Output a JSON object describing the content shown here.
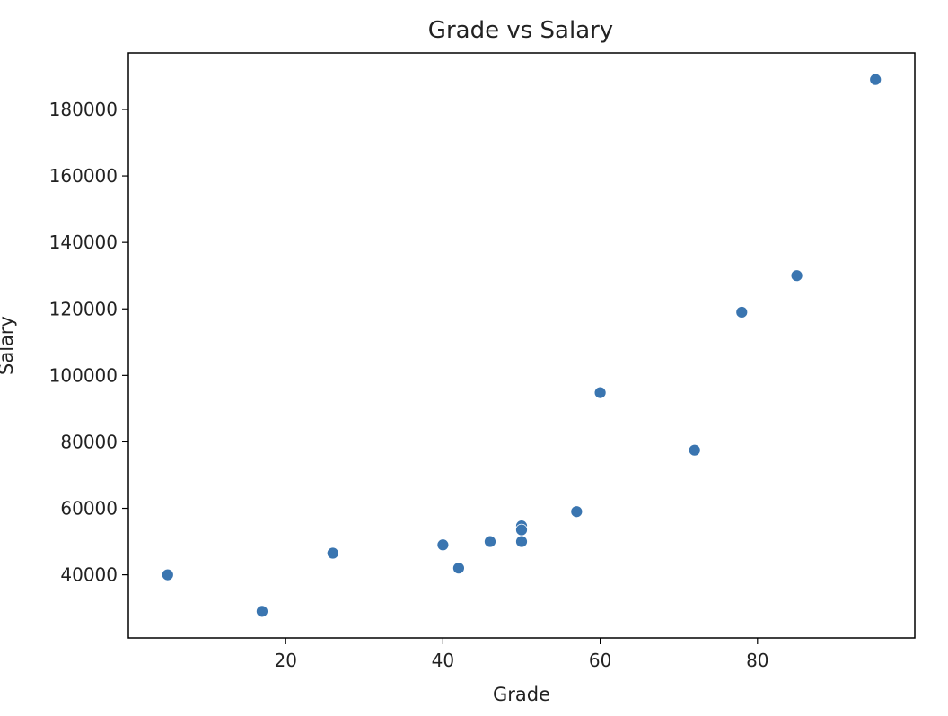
{
  "chart_data": {
    "type": "scatter",
    "title": "Grade vs Salary",
    "xlabel": "Grade",
    "ylabel": "Salary",
    "xlim": [
      0,
      100
    ],
    "ylim": [
      21000,
      197000
    ],
    "x_ticks": [
      20,
      40,
      60,
      80
    ],
    "y_ticks": [
      40000,
      60000,
      80000,
      100000,
      120000,
      140000,
      160000,
      180000
    ],
    "grid": false,
    "marker_color": "#3a75b0",
    "points": [
      {
        "x": 5,
        "y": 40000
      },
      {
        "x": 17,
        "y": 29000
      },
      {
        "x": 26,
        "y": 46500
      },
      {
        "x": 40,
        "y": 49000
      },
      {
        "x": 42,
        "y": 42000
      },
      {
        "x": 46,
        "y": 50000
      },
      {
        "x": 50,
        "y": 54700
      },
      {
        "x": 50,
        "y": 53500
      },
      {
        "x": 50,
        "y": 50000
      },
      {
        "x": 57,
        "y": 59000
      },
      {
        "x": 60,
        "y": 94800
      },
      {
        "x": 72,
        "y": 77500
      },
      {
        "x": 78,
        "y": 119000
      },
      {
        "x": 85,
        "y": 130000
      },
      {
        "x": 95,
        "y": 189000
      }
    ]
  }
}
